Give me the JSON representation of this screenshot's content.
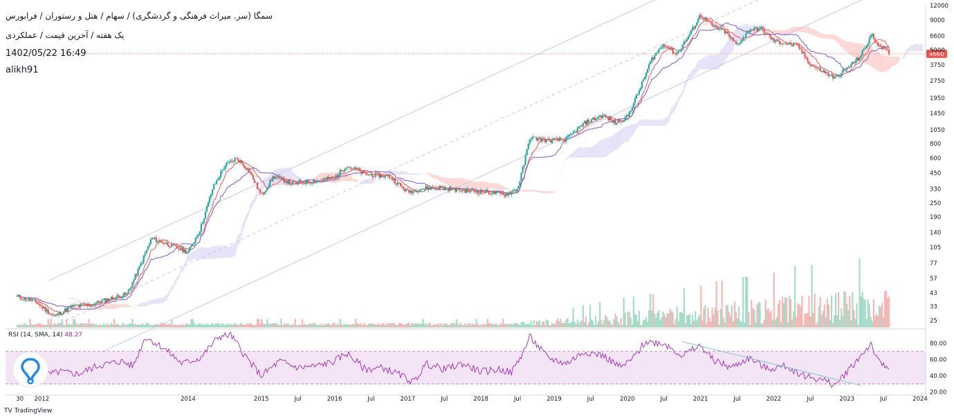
{
  "header": {
    "title": "سمگا (سر. میراث فرهنگی و گردشگری) / سهام / هتل و رستوران / فرابورس",
    "subtitle": "یک هفته / آخرین قیمت / عملکردی",
    "timestamp": "1402/05/22 16:49",
    "author": "alikh91"
  },
  "brand": {
    "mark": "TV",
    "name": "TradingView"
  },
  "colors": {
    "up": "#26a69a",
    "down": "#ef5350",
    "vol_up": "#a5dcc8",
    "vol_down": "#f5b7b5",
    "tenkan": "#ef5350",
    "kijun": "#7e57c2",
    "cloud_bull": "#e6e2f7",
    "cloud_bear": "#fcd7d5",
    "channel": "#c5cae9",
    "price_line": "#ef5350",
    "rsi_line": "#9c27b0",
    "rsi_band": "#f3e5f5",
    "trend": "#80cbc4"
  },
  "chart_data": [
    {
      "type": "candlestick",
      "scale": "log",
      "interval": "1W",
      "ylim": [
        23,
        12000
      ],
      "y_ticks": [
        "12000",
        "9000",
        "6600",
        "5000",
        "3750",
        "2750",
        "1950",
        "1450",
        "1050",
        "800",
        "600",
        "450",
        "330",
        "250",
        "190",
        "140",
        "105",
        "77",
        "57",
        "43",
        "33",
        "25"
      ],
      "last_price": "4660",
      "x_ticks": [
        "30",
        "2012",
        "2014",
        "2015",
        "Jul",
        "2016",
        "Jul",
        "2017",
        "Jul",
        "2018",
        "Jul",
        "2019",
        "Jul",
        "2020",
        "Jul",
        "2021",
        "Jul",
        "2022",
        "Jul",
        "2023",
        "Jul",
        "2024"
      ],
      "price_path": [
        [
          "2011-09",
          40
        ],
        [
          "2011-12",
          36
        ],
        [
          "2012-03",
          27
        ],
        [
          "2012-06",
          33
        ],
        [
          "2012-09",
          34
        ],
        [
          "2012-12",
          38
        ],
        [
          "2013-03",
          42
        ],
        [
          "2013-05",
          70
        ],
        [
          "2013-07",
          125
        ],
        [
          "2013-10",
          110
        ],
        [
          "2014-01",
          95
        ],
        [
          "2014-03",
          150
        ],
        [
          "2014-05",
          330
        ],
        [
          "2014-07",
          520
        ],
        [
          "2014-09",
          600
        ],
        [
          "2014-11",
          470
        ],
        [
          "2015-01",
          290
        ],
        [
          "2015-03",
          420
        ],
        [
          "2015-06",
          370
        ],
        [
          "2015-09",
          380
        ],
        [
          "2016-01",
          410
        ],
        [
          "2016-03",
          520
        ],
        [
          "2016-06",
          440
        ],
        [
          "2016-10",
          420
        ],
        [
          "2017-01",
          310
        ],
        [
          "2017-03",
          330
        ],
        [
          "2017-06",
          340
        ],
        [
          "2017-10",
          320
        ],
        [
          "2018-02",
          310
        ],
        [
          "2018-05",
          295
        ],
        [
          "2018-07",
          330
        ],
        [
          "2018-08",
          520
        ],
        [
          "2018-09",
          900
        ],
        [
          "2018-12",
          850
        ],
        [
          "2019-03",
          870
        ],
        [
          "2019-06",
          1200
        ],
        [
          "2019-09",
          1400
        ],
        [
          "2019-11",
          1200
        ],
        [
          "2020-01",
          1350
        ],
        [
          "2020-03",
          2300
        ],
        [
          "2020-05",
          4200
        ],
        [
          "2020-07",
          5700
        ],
        [
          "2020-09",
          4600
        ],
        [
          "2020-11",
          6500
        ],
        [
          "2021-01",
          10000
        ],
        [
          "2021-03",
          8000
        ],
        [
          "2021-05",
          7200
        ],
        [
          "2021-07",
          5500
        ],
        [
          "2021-09",
          7500
        ],
        [
          "2021-11",
          7600
        ],
        [
          "2022-01",
          6000
        ],
        [
          "2022-03",
          5700
        ],
        [
          "2022-05",
          5400
        ],
        [
          "2022-07",
          3800
        ],
        [
          "2022-09",
          3300
        ],
        [
          "2022-11",
          2900
        ],
        [
          "2023-01",
          3500
        ],
        [
          "2023-03",
          4300
        ],
        [
          "2023-04",
          5200
        ],
        [
          "2023-05",
          6800
        ],
        [
          "2023-06",
          5700
        ],
        [
          "2023-07",
          5200
        ],
        [
          "2023-08",
          4660
        ]
      ]
    },
    {
      "type": "line",
      "title": "RSI (14, SMA, 14)",
      "value_label": "48.27",
      "ylim": [
        18,
        96
      ],
      "band": [
        30,
        70
      ],
      "y_ticks": [
        "80.00",
        "60.00",
        "40.00",
        "20.00"
      ],
      "values": [
        [
          "2011-09",
          55
        ],
        [
          "2012-01",
          40
        ],
        [
          "2012-04",
          45
        ],
        [
          "2012-07",
          42
        ],
        [
          "2012-10",
          52
        ],
        [
          "2013-02",
          58
        ],
        [
          "2013-04",
          52
        ],
        [
          "2013-06",
          88
        ],
        [
          "2013-09",
          74
        ],
        [
          "2013-12",
          55
        ],
        [
          "2014-03",
          62
        ],
        [
          "2014-06",
          88
        ],
        [
          "2014-08",
          90
        ],
        [
          "2014-11",
          58
        ],
        [
          "2015-01",
          40
        ],
        [
          "2015-04",
          58
        ],
        [
          "2015-07",
          50
        ],
        [
          "2015-10",
          52
        ],
        [
          "2016-01",
          58
        ],
        [
          "2016-03",
          68
        ],
        [
          "2016-06",
          48
        ],
        [
          "2016-09",
          50
        ],
        [
          "2016-12",
          40
        ],
        [
          "2017-02",
          32
        ],
        [
          "2017-04",
          55
        ],
        [
          "2017-07",
          48
        ],
        [
          "2017-10",
          55
        ],
        [
          "2018-01",
          45
        ],
        [
          "2018-04",
          48
        ],
        [
          "2018-06",
          44
        ],
        [
          "2018-08",
          70
        ],
        [
          "2018-09",
          88
        ],
        [
          "2018-12",
          62
        ],
        [
          "2019-03",
          55
        ],
        [
          "2019-06",
          70
        ],
        [
          "2019-09",
          65
        ],
        [
          "2019-12",
          50
        ],
        [
          "2020-02",
          62
        ],
        [
          "2020-04",
          82
        ],
        [
          "2020-07",
          80
        ],
        [
          "2020-10",
          65
        ],
        [
          "2021-01",
          77
        ],
        [
          "2021-03",
          60
        ],
        [
          "2021-06",
          50
        ],
        [
          "2021-09",
          62
        ],
        [
          "2021-12",
          48
        ],
        [
          "2022-03",
          52
        ],
        [
          "2022-06",
          40
        ],
        [
          "2022-09",
          35
        ],
        [
          "2022-11",
          28
        ],
        [
          "2023-01",
          45
        ],
        [
          "2023-03",
          62
        ],
        [
          "2023-05",
          80
        ],
        [
          "2023-06",
          58
        ],
        [
          "2023-08",
          48.27
        ]
      ]
    }
  ]
}
